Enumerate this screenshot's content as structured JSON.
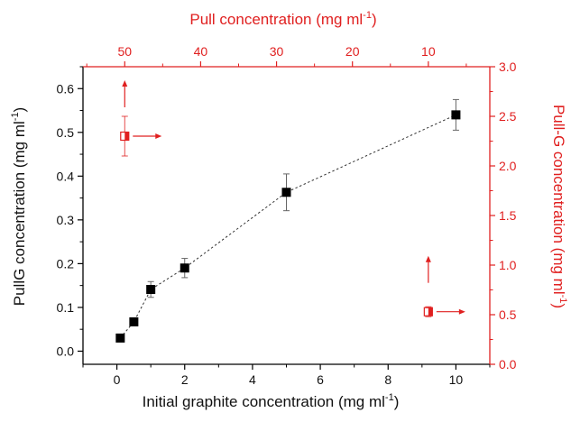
{
  "colors": {
    "main": "#000000",
    "accent": "#e02020",
    "line": "#333333",
    "errorbar": "#666666"
  },
  "chart_data": {
    "type": "scatter",
    "xlabel_main": "Initial graphite concentration (mg ml",
    "xlabel_sup": "-1",
    "xlabel_tail": ")",
    "ylabel_left_main": "PullG concentration (mg ml",
    "ylabel_left_sup": "-1",
    "ylabel_left_tail": ")",
    "xlabel_top_main": "Pull concentration (mg ml",
    "xlabel_top_sup": "-1",
    "xlabel_top_tail": ")",
    "ylabel_right_main": "Pull-G concentration (mg ml",
    "ylabel_right_sup": "-1",
    "ylabel_right_tail": ")",
    "xlim": [
      -1,
      11
    ],
    "ylim_left": [
      -0.03,
      0.65
    ],
    "xlim_top": [
      55.5,
      1.9
    ],
    "ylim_right": [
      0.0,
      3.0
    ],
    "x_ticks": [
      "0",
      "2",
      "4",
      "6",
      "8",
      "10"
    ],
    "y_left_ticks": [
      "0.0",
      "0.1",
      "0.2",
      "0.3",
      "0.4",
      "0.5",
      "0.6"
    ],
    "x_top_ticks": [
      "50",
      "40",
      "30",
      "20",
      "10"
    ],
    "y_right_ticks": [
      "0.0",
      "0.5",
      "1.0",
      "1.5",
      "2.0",
      "2.5",
      "3.0"
    ],
    "series": [
      {
        "x": [
          0.1,
          0.5,
          1.0,
          2.0,
          5.0,
          10.0
        ],
        "y": [
          0.03,
          0.067,
          0.141,
          0.19,
          0.363,
          0.54
        ],
        "err": [
          0.006,
          0.006,
          0.018,
          0.022,
          0.042,
          0.035
        ]
      }
    ],
    "annotations": [
      {
        "label": "left-series-indicator",
        "x_top": 50,
        "y_right": 2.3,
        "err": 0.2,
        "arrows": [
          "up",
          "right"
        ]
      },
      {
        "label": "right-series-indicator",
        "x_top": 10,
        "y_right": 0.53,
        "err": 0.05,
        "arrows": [
          "up",
          "right"
        ]
      }
    ]
  }
}
